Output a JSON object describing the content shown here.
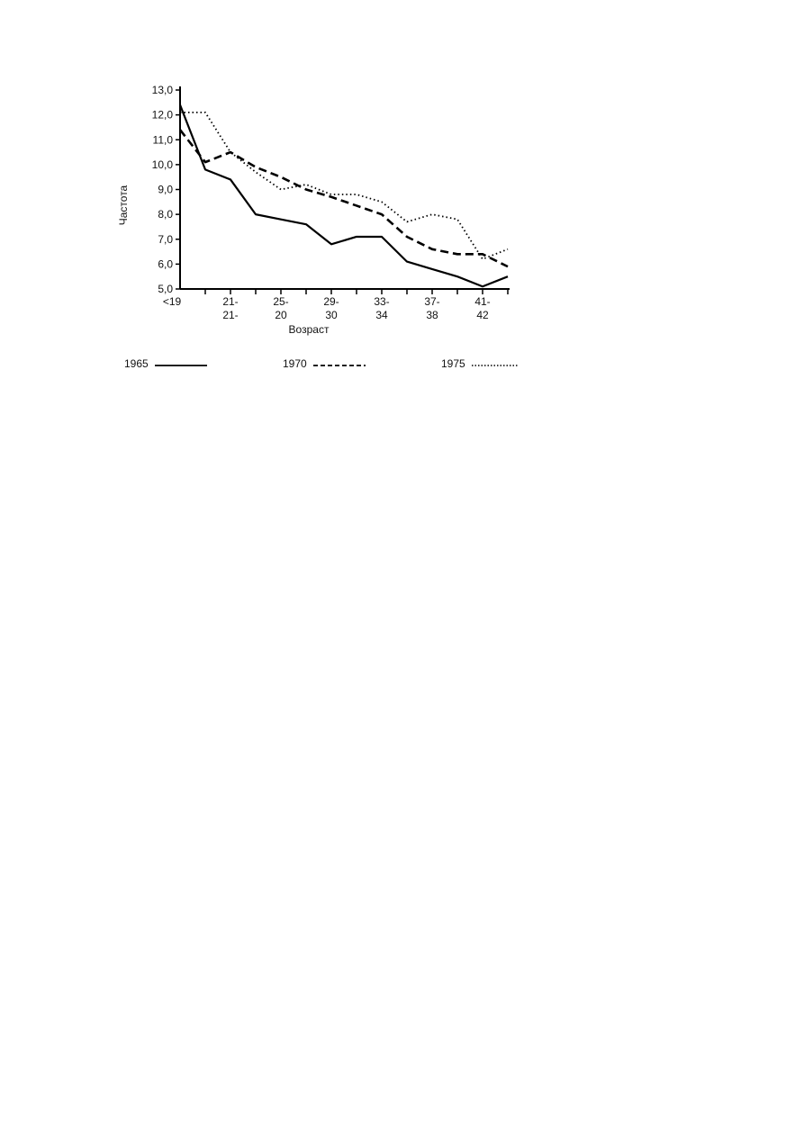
{
  "chart_data": {
    "type": "line",
    "y_label": "Частота",
    "x_label": "Возраст",
    "categories": [
      [
        "<19"
      ],
      null,
      [
        "21-",
        "21-"
      ],
      null,
      [
        "25-",
        "20"
      ],
      null,
      [
        "29-",
        "30"
      ],
      null,
      [
        "33-",
        "34"
      ],
      null,
      [
        "37-",
        "38"
      ],
      null,
      [
        "41-",
        "42"
      ],
      null
    ],
    "ylim": [
      5,
      13
    ],
    "yticks": [
      {
        "value": 5,
        "label": "5,0"
      },
      {
        "value": 6,
        "label": "6,0"
      },
      {
        "value": 7,
        "label": "7,0"
      },
      {
        "value": 8,
        "label": "8,0"
      },
      {
        "value": 9,
        "label": "9,0"
      },
      {
        "value": 10,
        "label": "10,0"
      },
      {
        "value": 11,
        "label": "11,0"
      },
      {
        "value": 12,
        "label": "12,0"
      },
      {
        "value": 13,
        "label": "13,0"
      }
    ],
    "series": [
      {
        "name": "1965",
        "color": "#000000",
        "line_style": "solid",
        "values": [
          12.4,
          9.8,
          9.4,
          8.0,
          7.8,
          7.6,
          6.8,
          7.1,
          7.1,
          6.1,
          5.8,
          5.5,
          5.1,
          5.5
        ]
      },
      {
        "name": "1970",
        "color": "#000000",
        "line_style": "dashed",
        "values": [
          11.4,
          10.1,
          10.5,
          9.9,
          9.5,
          9.0,
          8.7,
          8.35,
          8.0,
          7.1,
          6.6,
          6.4,
          6.4,
          5.9
        ]
      },
      {
        "name": "1975",
        "color": "#000000",
        "line_style": "dotted",
        "values": [
          12.1,
          12.1,
          10.5,
          9.7,
          9.0,
          9.2,
          8.8,
          8.8,
          8.5,
          7.7,
          8.0,
          7.8,
          6.2,
          6.6
        ]
      }
    ]
  }
}
